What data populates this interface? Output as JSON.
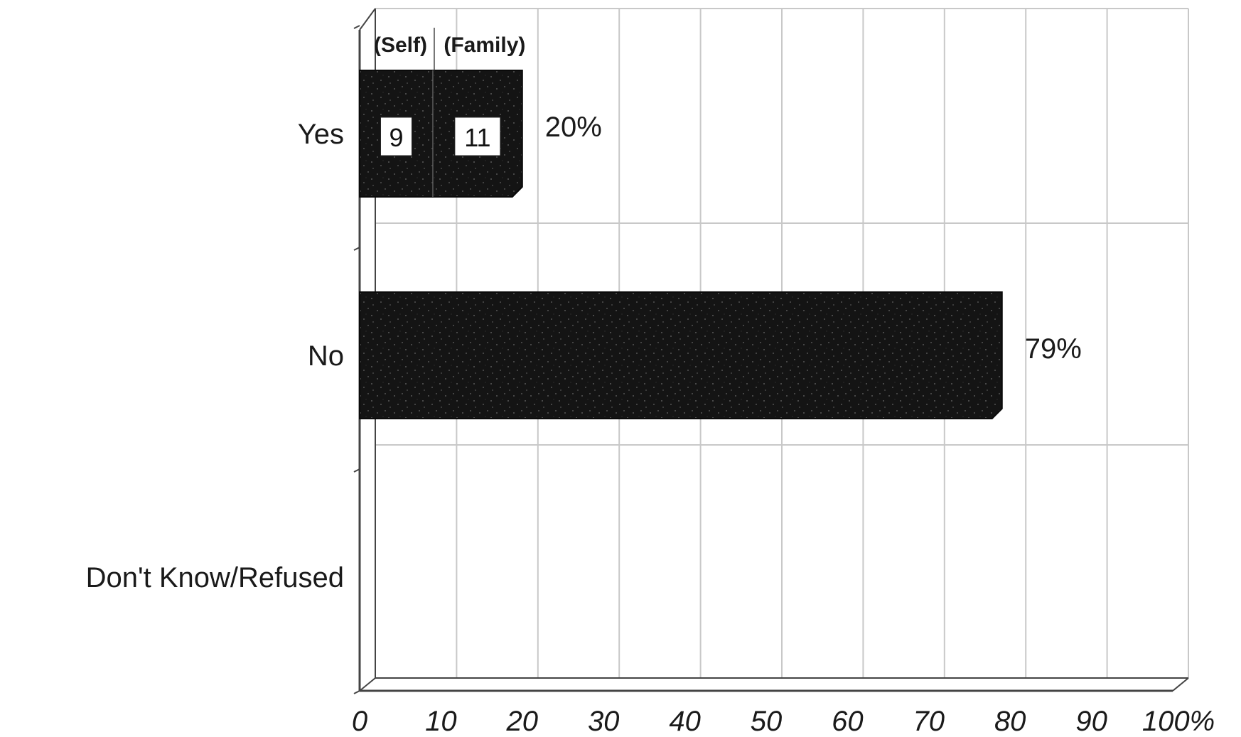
{
  "chart_data": {
    "type": "bar",
    "orientation": "horizontal",
    "categories": [
      "Yes",
      "No",
      "Don't Know/Refused"
    ],
    "values": [
      20,
      79,
      0
    ],
    "value_labels": [
      "20%",
      "79%",
      ""
    ],
    "stacked_breakdown": {
      "category": "Yes",
      "segments": [
        {
          "name": "(Self)",
          "value": 9,
          "label": "9"
        },
        {
          "name": "(Family)",
          "value": 11,
          "label": "11"
        }
      ]
    },
    "title": "",
    "xlabel": "",
    "ylabel": "",
    "xlim": [
      0,
      100
    ],
    "x_ticks": [
      0,
      10,
      20,
      30,
      40,
      50,
      60,
      70,
      80,
      90,
      100
    ],
    "x_tick_labels": [
      "0",
      "10",
      "20",
      "30",
      "40",
      "50",
      "60",
      "70",
      "80",
      "90",
      "100%"
    ],
    "grid": true,
    "legend": "none",
    "colors": {
      "bar": "#141414",
      "grid": "#c8c8c8",
      "axis": "#444444",
      "background": "#ffffff"
    }
  }
}
